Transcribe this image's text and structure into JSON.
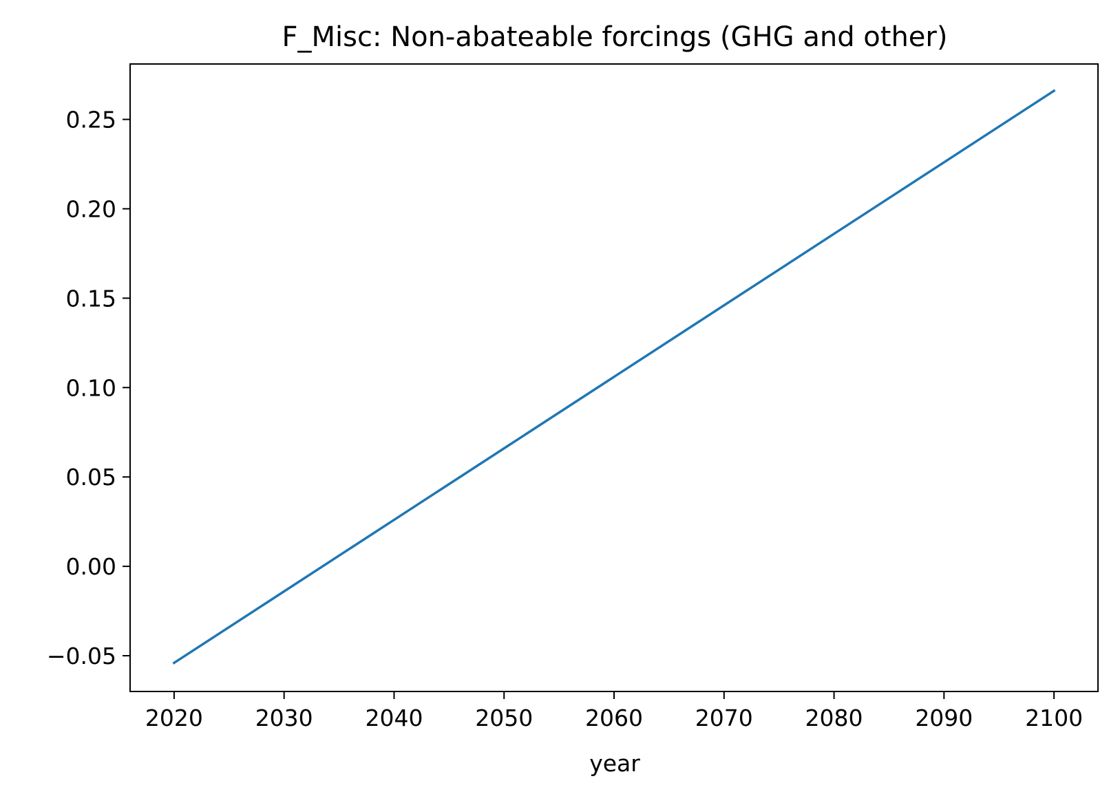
{
  "chart_data": {
    "type": "line",
    "title": "F_Misc: Non-abateable forcings (GHG and other)",
    "xlabel": "year",
    "ylabel": "",
    "xlim": [
      2016,
      2104
    ],
    "ylim": [
      -0.07,
      0.281
    ],
    "x_ticks": [
      2020,
      2030,
      2040,
      2050,
      2060,
      2070,
      2080,
      2090,
      2100
    ],
    "x_tick_labels": [
      "2020",
      "2030",
      "2040",
      "2050",
      "2060",
      "2070",
      "2080",
      "2090",
      "2100"
    ],
    "y_ticks": [
      -0.05,
      0.0,
      0.05,
      0.1,
      0.15,
      0.2,
      0.25
    ],
    "y_tick_labels": [
      "−0.05",
      "0.00",
      "0.05",
      "0.10",
      "0.15",
      "0.20",
      "0.25"
    ],
    "grid": false,
    "legend": "none",
    "series": [
      {
        "color": "#1f77b4",
        "x": [
          2020,
          2030,
          2040,
          2050,
          2060,
          2070,
          2080,
          2090,
          2100
        ],
        "y": [
          -0.054,
          -0.014,
          0.026,
          0.066,
          0.106,
          0.146,
          0.186,
          0.226,
          0.266
        ]
      }
    ]
  }
}
